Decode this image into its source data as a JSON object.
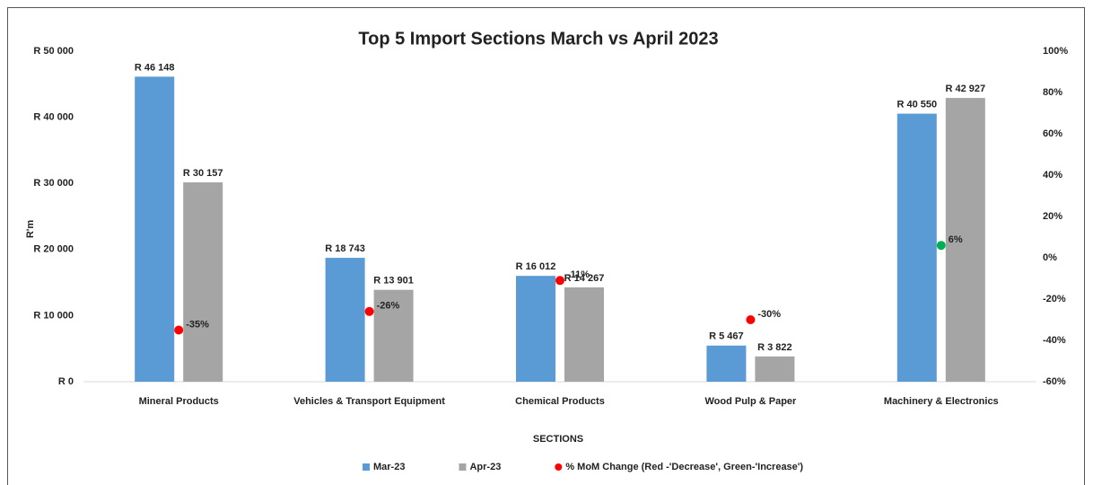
{
  "chart_data": {
    "type": "bar",
    "title": "Top 5 Import Sections March vs April 2023",
    "y_label": "R'm",
    "x_label": "SECTIONS",
    "categories": [
      "Mineral Products",
      "Vehicles & Transport Equipment",
      "Chemical Products",
      "Wood Pulp & Paper",
      "Machinery & Electronics"
    ],
    "series": [
      {
        "name": "Mar-23",
        "color": "#5b9bd5",
        "values": [
          46148,
          18743,
          16012,
          5467,
          40550
        ],
        "value_labels": [
          "R 46 148",
          "R 18 743",
          "R 16 012",
          "R 5 467",
          "R 40 550"
        ]
      },
      {
        "name": "Apr-23",
        "color": "#a5a5a5",
        "values": [
          30157,
          13901,
          14267,
          3822,
          42927
        ],
        "value_labels": [
          "R 30 157",
          "R 13 901",
          "R 14 267",
          "R 3 822",
          "R 42 927"
        ]
      },
      {
        "name": "% MoM Change (Red -'Decrease', Green-'Increase')",
        "type": "scatter",
        "axis": "y2",
        "color": "#ff0000",
        "positive_color": "#00b050",
        "values": [
          -35,
          -26,
          -11,
          -30,
          6
        ],
        "value_labels": [
          "-35%",
          "-26%",
          "-11%",
          "-30%",
          "6%"
        ]
      }
    ],
    "ylim": [
      0,
      50000
    ],
    "yticks": [
      {
        "value": 0,
        "label": "R 0"
      },
      {
        "value": 10000,
        "label": "R 10 000"
      },
      {
        "value": 20000,
        "label": "R 20 000"
      },
      {
        "value": 30000,
        "label": "R 30 000"
      },
      {
        "value": 40000,
        "label": "R 40 000"
      },
      {
        "value": 50000,
        "label": "R 50 000"
      }
    ],
    "y2lim": [
      -60,
      100
    ],
    "y2ticks": [
      {
        "value": -60,
        "label": "-60%"
      },
      {
        "value": -40,
        "label": "-40%"
      },
      {
        "value": -20,
        "label": "-20%"
      },
      {
        "value": 0,
        "label": "0%"
      },
      {
        "value": 20,
        "label": "20%"
      },
      {
        "value": 40,
        "label": "40%"
      },
      {
        "value": 60,
        "label": "60%"
      },
      {
        "value": 80,
        "label": "80%"
      },
      {
        "value": 100,
        "label": "100%"
      }
    ],
    "grid": false,
    "legend": "bottom"
  }
}
